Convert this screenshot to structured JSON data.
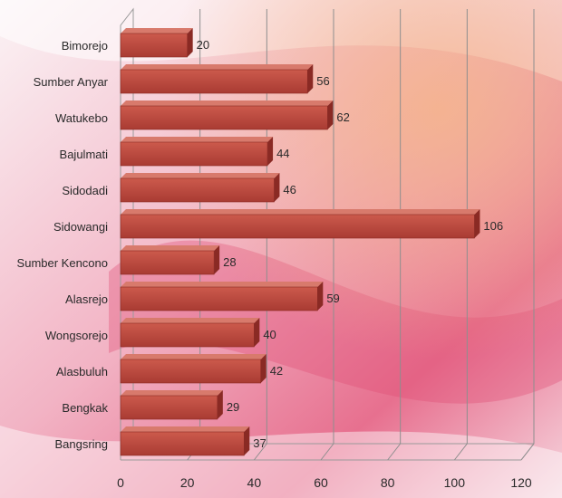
{
  "chart_data": {
    "type": "bar",
    "orientation": "horizontal",
    "categories": [
      "Bimorejo",
      "Sumber Anyar",
      "Watukebo",
      "Bajulmati",
      "Sidodadi",
      "Sidowangi",
      "Sumber Kencono",
      "Alasrejo",
      "Wongsorejo",
      "Alasbuluh",
      "Bengkak",
      "Bangsring"
    ],
    "values": [
      20,
      56,
      62,
      44,
      46,
      106,
      28,
      59,
      40,
      42,
      29,
      37
    ],
    "xticks": [
      "0",
      "20",
      "40",
      "60",
      "80",
      "100",
      "120"
    ],
    "xlim": [
      0,
      120
    ],
    "grid": true,
    "legend": "none",
    "bar_style": "3d",
    "colors": {
      "bar_front": "#bf4b40",
      "bar_top": "#d87a6c",
      "bar_side": "#8a2a24",
      "grid": "#8e8e8e",
      "text": "#2a2a2a"
    }
  }
}
